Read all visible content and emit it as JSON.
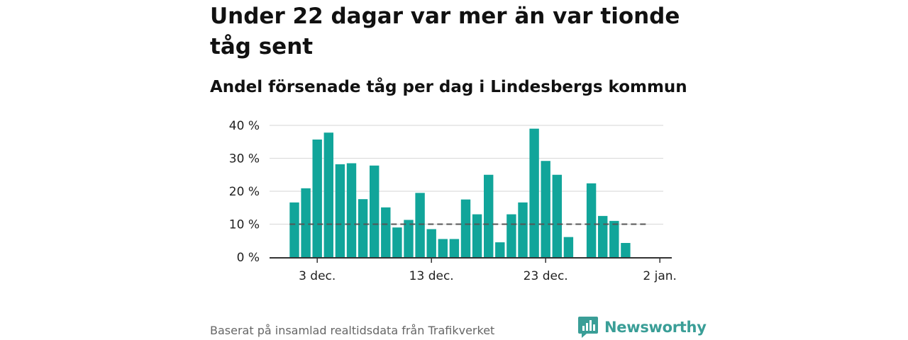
{
  "title": "Under 22 dagar var mer än var tionde tåg sent",
  "subtitle": "Andel försenade tåg per dag i Lindesbergs kommun",
  "source": "Baserat på insamlad realtidsdata från Trafikverket",
  "brand": {
    "name": "Newsworthy",
    "logo_icon": "newsworthy-logo-icon"
  },
  "colors": {
    "bar": "#11a59a",
    "grid": "#dddddd",
    "axis": "#333333",
    "reference_line": "#555555"
  },
  "chart_data": {
    "type": "bar",
    "x_unit": "day",
    "x_start": "2023-12-01",
    "x_end": "2024-01-02",
    "values": [
      16.6,
      20.9,
      35.7,
      37.8,
      28.2,
      28.5,
      17.6,
      27.8,
      15.1,
      9.0,
      11.3,
      19.5,
      8.5,
      5.5,
      5.5,
      17.5,
      13.0,
      25.0,
      4.5,
      13.0,
      16.6,
      39.0,
      29.2,
      25.0,
      6.1,
      null,
      22.4,
      12.5,
      11.0,
      4.3,
      null,
      null
    ],
    "reference_line": {
      "value": 10,
      "style": "dashed"
    },
    "ylim": [
      0,
      40
    ],
    "yticks": [
      0,
      10,
      20,
      30,
      40
    ],
    "ytick_labels": [
      "0 %",
      "10 %",
      "20 %",
      "30 %",
      "40 %"
    ],
    "xticks": [
      "2023-12-03",
      "2023-12-13",
      "2023-12-23",
      "2024-01-02"
    ],
    "xtick_labels": [
      "3 dec.",
      "13 dec.",
      "23 dec.",
      "2 jan."
    ],
    "grid": true,
    "xlabel": "",
    "ylabel": ""
  }
}
